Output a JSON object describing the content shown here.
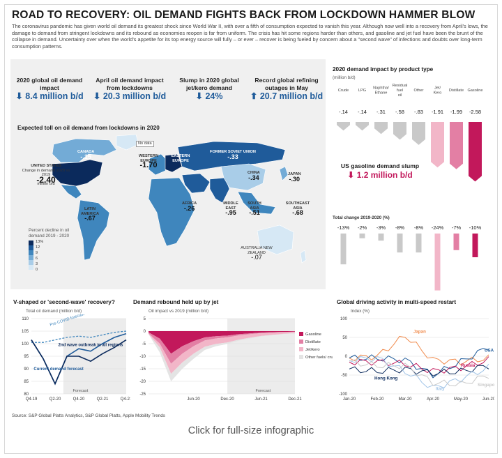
{
  "header": {
    "title": "ROAD TO RECOVERY: OIL DEMAND FIGHTS BACK FROM LOCKDOWN HAMMER BLOW",
    "intro": "The coronavirus pandemic has given world oil demand its greatest shock since World War II, with over a fifth of consumption expected to vanish this year. Although now well into a recovery from April's lows, the damage to demand from stringent lockdowns and its rebound as economies reopen is far from uniform. The crisis has hit some regions harder than others, and gasoline and jet fuel have been the brunt of the collapse in demand. Uncertainty over when the world's appetite for its top energy source will fully – or ever – recover is being fueled by concern about a \"second wave\" of infections and doubts over long-term consumption patterns."
  },
  "kpis": [
    {
      "label": "2020 global oil demand impact",
      "value": "8.4 million b/d",
      "dir": "down"
    },
    {
      "label": "April oil demand impact from lockdowns",
      "value": "20.3 million b/d",
      "dir": "down"
    },
    {
      "label": "Slump in 2020 global jet/kero demand",
      "value": "24%",
      "dir": "down"
    },
    {
      "label": "Record global refining outages in May",
      "value": "20.7 million b/d",
      "dir": "up"
    }
  ],
  "map": {
    "title": "Expected toll on oil demand from lockdowns in 2020",
    "no_data": "No data",
    "us_sub": "Change in demand 2020 vs 2019",
    "us_unit": "million b/d",
    "legend_title": "Percent decline in oil demand 2019 - 2020",
    "legend_ticks": [
      "13%",
      "12",
      "9",
      "6",
      "3",
      "0"
    ],
    "legend_colors": [
      "#0b2a5c",
      "#1f5b9a",
      "#3f86bd",
      "#73abd6",
      "#a9cde8",
      "#d6e8f5"
    ],
    "regions": [
      {
        "name": "UNITED STATES",
        "value": "-2.40"
      },
      {
        "name": "CANADA",
        "value": "-.15"
      },
      {
        "name": "WESTERN EUROPE",
        "value": "-1.70"
      },
      {
        "name": "EASTERN EUROPE",
        "value": ""
      },
      {
        "name": "FORMER SOVIET UNION",
        "value": "-.33"
      },
      {
        "name": "CHINA",
        "value": "-.34"
      },
      {
        "name": "JAPAN",
        "value": "-.30"
      },
      {
        "name": "LATIN AMERICA",
        "value": "-.67"
      },
      {
        "name": "AFRICA",
        "value": "-.26"
      },
      {
        "name": "MIDDLE EAST",
        "value": "-.95"
      },
      {
        "name": "SOUTH ASIA",
        "value": "-.51"
      },
      {
        "name": "SOUTHEAST ASIA",
        "value": "-.68"
      },
      {
        "name": "AUSTRALIA NEW ZEALAND",
        "value": "-.07"
      }
    ]
  },
  "product": {
    "title": "2020 demand impact by product type",
    "unit": "(million b/d)",
    "pct_title": "Total change 2019-2020 (%)",
    "slump_label": "US gasoline demand slump",
    "slump_value": "1.2 million b/d",
    "colors": {
      "grey": "#c9c9c9",
      "jet": "#f2b6c8",
      "dist": "#e37fa4",
      "gas": "#c2185b"
    }
  },
  "vchart": {
    "title": "V-shaped or 'second-wave' recovery?",
    "ylabel": "Total oil demand (million b/d)",
    "pre_label": "Pre-COVID forecast",
    "current_label": "Current demand forecast",
    "wave_label": "2nd wave outbreak in all regions",
    "forecast_label": "Forecast"
  },
  "jchart": {
    "title": "Demand rebound held up by jet",
    "ylabel": "Oil impact vs 2019 (million b/d)",
    "legend": [
      "Gasoline",
      "Distillate",
      "Jet/kero",
      "Other fuels/ crude"
    ],
    "forecast_label": "Forecast"
  },
  "dchart": {
    "title": "Global driving activity in multi-speed restart",
    "ylabel": "Index (%)",
    "labels": [
      "Japan",
      "USA",
      "Russia",
      "Hong Kong",
      "Italy",
      "Singapore"
    ]
  },
  "source": "Source: S&P Global Platts Analytics, S&P Global Platts, Apple Mobility Trends",
  "caption": "Click for full-size infographic",
  "chart_data": [
    {
      "type": "bar",
      "title": "2020 demand impact by product type",
      "categories": [
        "Crude",
        "LPG",
        "Naphtha/ Ethane",
        "Residual fuel oil",
        "Other",
        "Jet/ Kero",
        "Distillate",
        "Gasoline"
      ],
      "values": [
        -0.14,
        -0.14,
        -0.31,
        -0.58,
        -0.83,
        -1.91,
        -1.99,
        -2.58
      ],
      "value_labels": [
        "-.14",
        "-.14",
        "-.31",
        "-.58",
        "-.83",
        "-1.91",
        "-1.99",
        "-2.58"
      ]
    },
    {
      "type": "bar",
      "title": "Total change 2019-2020 (%)",
      "categories": [
        "Crude",
        "LPG",
        "Naphtha/ Ethane",
        "Residual fuel oil",
        "Other",
        "Jet/ Kero",
        "Distillate",
        "Gasoline"
      ],
      "values": [
        -13,
        -2,
        -3,
        -8,
        -8,
        -24,
        -7,
        -10
      ],
      "value_labels": [
        "-13%",
        "-2%",
        "-3%",
        "-8%",
        "-8%",
        "-24%",
        "-7%",
        "-10%"
      ]
    },
    {
      "type": "line",
      "title": "V-shaped or 'second-wave' recovery?",
      "x": [
        "Q4-19",
        "Q1-20",
        "Q2-20",
        "Q3-20",
        "Q4-20",
        "Q1-21",
        "Q2-21",
        "Q3-21",
        "Q4-21"
      ],
      "x_ticks": [
        "Q4-19",
        "Q2-20",
        "Q4-20",
        "Q2-21",
        "Q4-21"
      ],
      "ylim": [
        80,
        110
      ],
      "y_ticks": [
        80,
        85,
        90,
        95,
        100,
        105,
        110
      ],
      "series": [
        {
          "name": "Pre-COVID forecast",
          "values": [
            100.5,
            100.5,
            101.5,
            102.5,
            103,
            102.5,
            103.5,
            104.5,
            105
          ]
        },
        {
          "name": "Current demand forecast",
          "values": [
            101.5,
            94,
            84,
            95,
            98,
            97,
            100,
            102.5,
            104
          ]
        },
        {
          "name": "2nd wave outbreak in all regions",
          "values": [
            101.5,
            94,
            84,
            95,
            95,
            93,
            96,
            98.5,
            101.5
          ]
        }
      ]
    },
    {
      "type": "area",
      "title": "Demand rebound held up by jet",
      "x_ticks": [
        "Jun-20",
        "Dec-20",
        "Jun-21",
        "Dec-21"
      ],
      "ylim": [
        -25,
        5
      ],
      "y_ticks": [
        5,
        0,
        -5,
        -10,
        -15,
        -20,
        -25
      ],
      "x": [
        "Jan-20",
        "Mar-20",
        "Apr-20",
        "May-20",
        "Jun-20",
        "Aug-20",
        "Oct-20",
        "Dec-20",
        "Feb-21",
        "Apr-21",
        "Jun-21",
        "Aug-21",
        "Oct-21",
        "Dec-21"
      ],
      "series": [
        {
          "name": "Gasoline",
          "values": [
            -0.5,
            -3,
            -9,
            -6,
            -4,
            -2.5,
            -2,
            -1.8,
            -1.2,
            -0.9,
            -0.6,
            -0.4,
            -0.3,
            -0.2
          ]
        },
        {
          "name": "Distillate",
          "values": [
            -0.4,
            -2,
            -4,
            -3,
            -2,
            -1.2,
            -0.9,
            -0.7,
            -0.5,
            -0.3,
            -0.2,
            -0.2,
            -0.1,
            -0.1
          ]
        },
        {
          "name": "Jet/kero",
          "values": [
            -0.2,
            -1.5,
            -4,
            -3.5,
            -3,
            -2.5,
            -2.2,
            -2,
            -1.7,
            -1.4,
            -1.1,
            -0.9,
            -0.7,
            -0.6
          ]
        },
        {
          "name": "Other fuels/ crude",
          "values": [
            -0.1,
            -2,
            -3,
            -2.5,
            -2,
            -1.3,
            -0.9,
            -0.6,
            -0.4,
            -0.3,
            -0.2,
            -0.1,
            0.1,
            0.2
          ]
        }
      ]
    },
    {
      "type": "line",
      "title": "Global driving activity in multi-speed restart",
      "ylim": [
        -100,
        100
      ],
      "y_ticks": [
        100,
        50,
        0,
        -50,
        -100
      ],
      "x_ticks": [
        "Jan-20",
        "Feb-20",
        "Mar-20",
        "Apr-20",
        "May-20",
        "Jun-20"
      ],
      "x": [
        "Jan-20",
        "Feb-20",
        "Mar-20",
        "Apr-20",
        "May-20",
        "Jun-20"
      ],
      "series": [
        {
          "name": "Japan",
          "values": [
            -5,
            0,
            55,
            -10,
            -15,
            -5
          ]
        },
        {
          "name": "USA",
          "values": [
            -5,
            -5,
            -10,
            -50,
            -15,
            25
          ]
        },
        {
          "name": "Russia",
          "values": [
            -15,
            -15,
            -20,
            -40,
            -30,
            -10
          ]
        },
        {
          "name": "Hong Kong",
          "values": [
            -35,
            -40,
            -35,
            -45,
            -40,
            -25
          ]
        },
        {
          "name": "Italy",
          "values": [
            -10,
            -5,
            -40,
            -85,
            -60,
            -30
          ]
        },
        {
          "name": "Singapore",
          "values": [
            -15,
            -25,
            -25,
            -70,
            -75,
            -50
          ]
        }
      ]
    }
  ]
}
